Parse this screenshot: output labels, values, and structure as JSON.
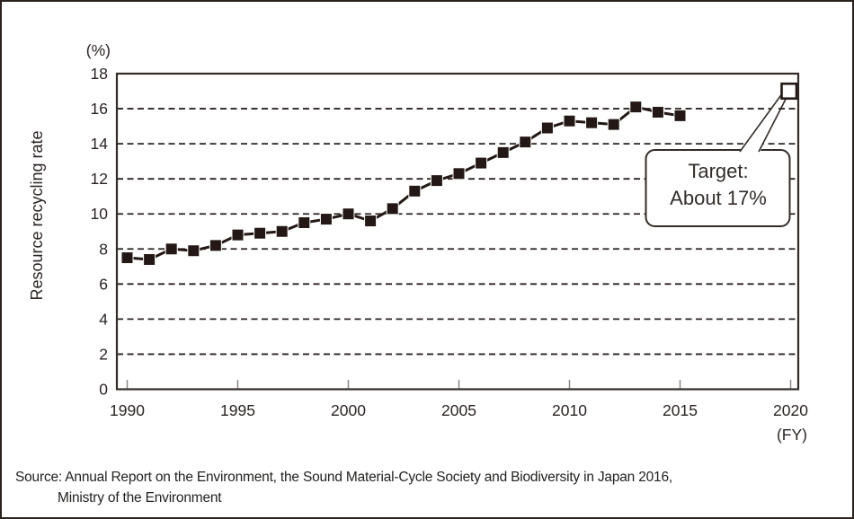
{
  "chart_data": {
    "type": "line",
    "title": "",
    "ylabel": "Resource recycling rate",
    "y_unit_label": "(%)",
    "x_unit_label": "(FY)",
    "ylim": [
      0,
      18
    ],
    "xlim": [
      1990,
      2020
    ],
    "y_ticks": [
      0,
      2,
      4,
      6,
      8,
      10,
      12,
      14,
      16,
      18
    ],
    "x_ticks": [
      1990,
      1995,
      2000,
      2005,
      2010,
      2015,
      2020
    ],
    "grid": "dashed-horizontal",
    "legend_position": "none",
    "series": [
      {
        "name": "Resource recycling rate",
        "marker": "filled-square",
        "color": "#231815",
        "x": [
          1990,
          1991,
          1992,
          1993,
          1994,
          1995,
          1996,
          1997,
          1998,
          1999,
          2000,
          2001,
          2002,
          2003,
          2004,
          2005,
          2006,
          2007,
          2008,
          2009,
          2010,
          2011,
          2012,
          2013,
          2014,
          2015
        ],
        "values": [
          7.5,
          7.4,
          8.0,
          7.9,
          8.2,
          8.8,
          8.9,
          9.0,
          9.5,
          9.7,
          10.0,
          9.6,
          10.3,
          11.3,
          11.9,
          12.3,
          12.9,
          13.5,
          14.1,
          14.9,
          15.3,
          15.2,
          15.1,
          16.1,
          15.8,
          15.6
        ]
      }
    ],
    "target_point": {
      "x": 2020,
      "value": 17,
      "marker": "open-square"
    },
    "callout": {
      "line1": "Target:",
      "line2": "About 17%"
    }
  },
  "source": {
    "line1": "Source: Annual Report on the Environment, the Sound Material-Cycle Society and Biodiversity in Japan 2016,",
    "line2": "Ministry of the Environment"
  },
  "colors": {
    "line": "#231815",
    "axis": "#332b27",
    "grid": "#2b2320",
    "tick": "#8f8984",
    "text": "#2b2422",
    "background": "#ffffff"
  }
}
